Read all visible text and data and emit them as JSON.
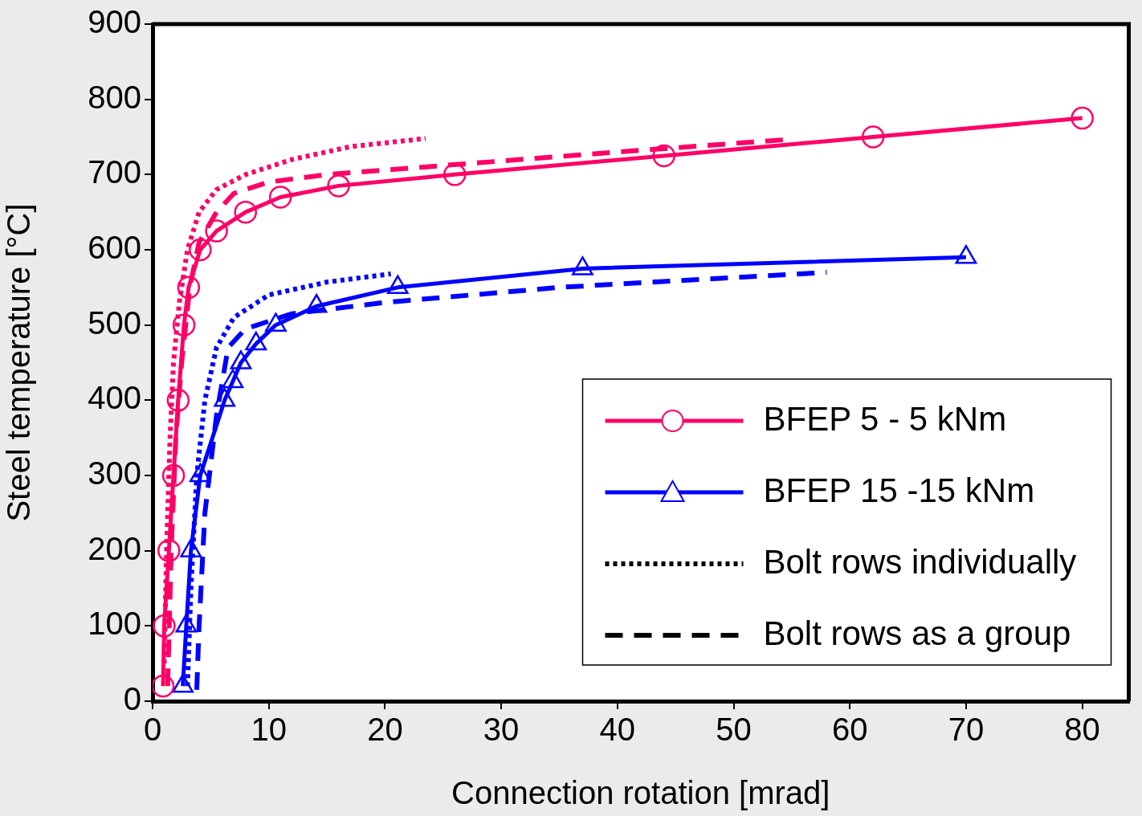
{
  "chart_data": {
    "type": "line",
    "xlabel": "Connection rotation [mrad]",
    "ylabel": "Steel temperature [°C]",
    "xlim": [
      0,
      84
    ],
    "xticks": [
      0,
      10,
      20,
      30,
      40,
      50,
      60,
      70,
      80
    ],
    "ylim": [
      0,
      900
    ],
    "yticks": [
      0,
      100,
      200,
      300,
      400,
      500,
      600,
      700,
      800,
      900
    ],
    "grid": false,
    "legend": "bottom right",
    "series": [
      {
        "name": "BFEP 5 - 5 kNm",
        "color": "#ff0066",
        "marker": "circle",
        "line_style": "solid",
        "x": [
          0.9,
          1.0,
          1.4,
          1.8,
          2.2,
          2.7,
          3.1,
          4.1,
          5.5,
          8.0,
          11.0,
          16.0,
          26.0,
          44.0,
          62.0,
          80.0
        ],
        "values": [
          20,
          100,
          200,
          300,
          400,
          500,
          550,
          600,
          625,
          650,
          670,
          685,
          700,
          725,
          750,
          775
        ]
      },
      {
        "name": "BFEP 15 -15 kNm",
        "color": "#0000ff",
        "marker": "triangle",
        "line_style": "solid",
        "x": [
          2.6,
          2.9,
          3.3,
          4.1,
          6.2,
          6.9,
          7.6,
          8.9,
          10.6,
          14.1,
          21.1,
          37.0,
          70.0
        ],
        "values": [
          20,
          100,
          200,
          300,
          400,
          425,
          450,
          475,
          500,
          525,
          550,
          575,
          590
        ]
      },
      {
        "name": "Bolt rows individually",
        "color": "#000000",
        "marker": "none",
        "line_style": "dotted"
      },
      {
        "name": "Bolt rows as a group",
        "color": "#000000",
        "marker": "none",
        "line_style": "dashed"
      },
      {
        "color": "#ff0066",
        "marker": "none",
        "line_style": "dotted",
        "x": [
          1.0,
          1.2,
          1.5,
          1.8,
          2.3,
          3.0,
          4.0,
          5.5,
          8,
          12,
          17,
          23.5
        ],
        "values": [
          50,
          200,
          350,
          450,
          530,
          600,
          650,
          680,
          700,
          720,
          737,
          748
        ]
      },
      {
        "color": "#ff0066",
        "marker": "none",
        "line_style": "dashed",
        "x": [
          1.3,
          1.6,
          2.0,
          2.5,
          3.2,
          4.0,
          5.5,
          7,
          10,
          15,
          25,
          40,
          55
        ],
        "values": [
          20,
          200,
          350,
          450,
          550,
          610,
          650,
          675,
          690,
          700,
          712,
          730,
          747
        ]
      },
      {
        "color": "#0000ff",
        "marker": "none",
        "line_style": "dotted",
        "x": [
          3.0,
          3.3,
          3.8,
          4.5,
          5.5,
          7,
          10,
          15,
          20.5
        ],
        "values": [
          20,
          150,
          300,
          400,
          470,
          510,
          540,
          557,
          568
        ]
      },
      {
        "color": "#0000ff",
        "marker": "none",
        "line_style": "dashed",
        "x": [
          3.8,
          4.0,
          4.5,
          5.5,
          6.5,
          8,
          12,
          20,
          35,
          58
        ],
        "values": [
          15,
          100,
          250,
          380,
          470,
          495,
          515,
          530,
          550,
          570
        ]
      }
    ]
  }
}
